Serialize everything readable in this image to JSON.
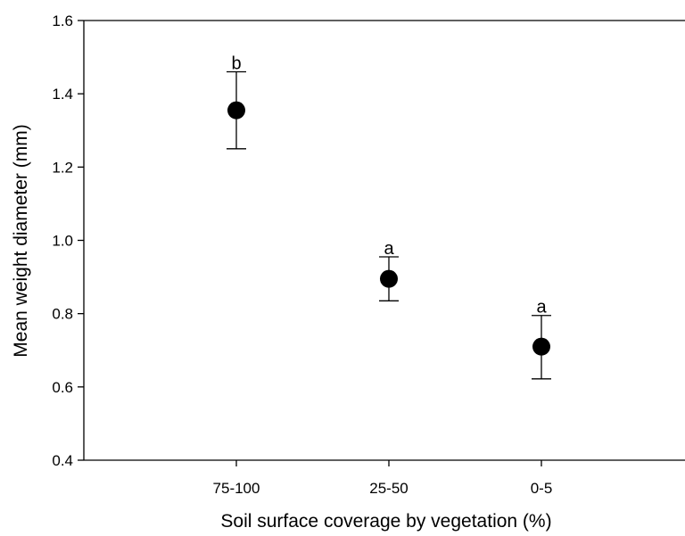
{
  "chart_data": {
    "type": "scatter",
    "xlabel": "Soil surface coverage by vegetation (%)",
    "ylabel": "Mean weight diameter (mm)",
    "ylim": [
      0.4,
      1.6
    ],
    "yticks": [
      "0.4",
      "0.6",
      "0.8",
      "1.0",
      "1.2",
      "1.4",
      "1.6"
    ],
    "categories": [
      "75-100",
      "25-50",
      "0-5"
    ],
    "points": [
      {
        "category": "75-100",
        "mean": 1.355,
        "lower": 1.25,
        "upper": 1.46,
        "letter": "b"
      },
      {
        "category": "25-50",
        "mean": 0.895,
        "lower": 0.835,
        "upper": 0.955,
        "letter": "a"
      },
      {
        "category": "0-5",
        "mean": 0.71,
        "lower": 0.622,
        "upper": 0.795,
        "letter": "a"
      }
    ],
    "marker_color": "#000000",
    "grid": false,
    "legend": "none"
  }
}
